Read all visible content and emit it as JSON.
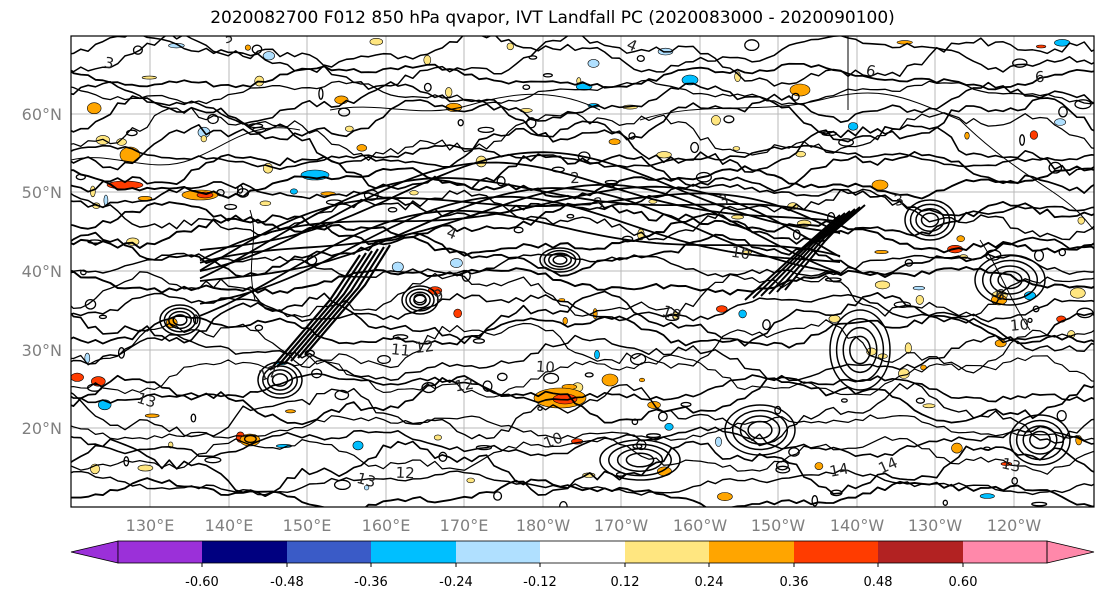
{
  "title": "2020082700 F012 850 hPa qvapor, IVT Landfall PC (2020083000 - 2020090100)",
  "lat_labels": [
    "60°N",
    "50°N",
    "40°N",
    "30°N",
    "20°N"
  ],
  "lon_labels": [
    "130°E",
    "140°E",
    "150°E",
    "160°E",
    "170°E",
    "180°W",
    "170°W",
    "160°W",
    "150°W",
    "140°W",
    "130°W",
    "120°W"
  ],
  "colorbar": {
    "colors": [
      "#9b30d9",
      "#000080",
      "#3a5bc7",
      "#00bfff",
      "#b0e0ff",
      "#ffffff",
      "#ffe680",
      "#ffa500",
      "#ff3c00",
      "#b22222",
      "#ff88aa"
    ],
    "tick_labels": [
      "-0.60",
      "-0.48",
      "-0.36",
      "-0.24",
      "-0.12",
      "0.12",
      "0.24",
      "0.36",
      "0.48",
      "0.60"
    ]
  },
  "contour_labels": [
    "3",
    "3",
    "2",
    "3",
    "4",
    "6",
    "6",
    "3",
    "4",
    "10",
    "10",
    "9",
    "10",
    "11",
    "12",
    "12",
    "13",
    "10",
    "12",
    "10",
    "13",
    "12",
    "14",
    "14",
    "13",
    "6",
    "3"
  ]
}
